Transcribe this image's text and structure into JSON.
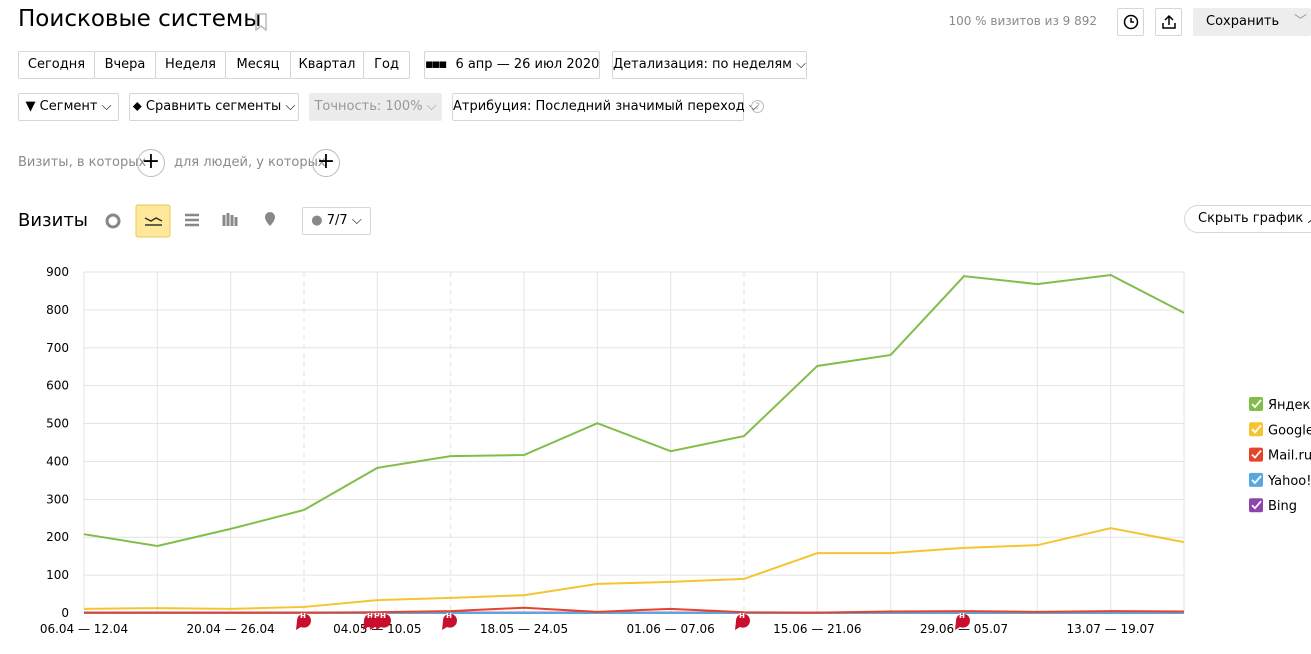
{
  "header": {
    "title": "Поисковые системы",
    "visits_share": "100 % визитов из 9 892",
    "save": "Сохранить"
  },
  "periods": [
    "Сегодня",
    "Вчера",
    "Неделя",
    "Месяц",
    "Квартал",
    "Год"
  ],
  "date_range": "6 апр — 26 июл 2020",
  "detail": "Детализация: по неделям",
  "filters": {
    "segment": "Сегмент",
    "compare": "Сравнить сегменты",
    "accuracy": "Точность: 100%",
    "attribution": "Атрибуция: Последний значимый переход"
  },
  "conditions": [
    "Визиты, в которых",
    "для людей, у которых"
  ],
  "section": {
    "title": "Визиты",
    "counter": "7/7",
    "hide": "Скрыть график"
  },
  "chart_data": {
    "type": "line",
    "categories": [
      "06.04 — 12.04",
      null,
      "20.04 — 26.04",
      null,
      "04.05 — 10.05",
      null,
      "18.05 — 24.05",
      null,
      "01.06 — 07.06",
      null,
      "15.06 — 21.06",
      null,
      "29.06 — 05.07",
      null,
      "13.07 — 19.07",
      null
    ],
    "series": [
      {
        "name": "Яндекс",
        "color": "#82bd4b",
        "values": [
          208,
          177,
          222,
          272,
          383,
          414,
          417,
          501,
          427,
          467,
          652,
          681,
          889,
          868,
          892,
          792
        ]
      },
      {
        "name": "Google",
        "color": "#f5c531",
        "values": [
          11,
          13,
          11,
          16,
          34,
          40,
          47,
          77,
          82,
          90,
          158,
          158,
          172,
          179,
          224,
          187
        ]
      },
      {
        "name": "Mail.ru",
        "color": "#e5432c",
        "values": [
          1,
          1,
          1,
          1,
          2,
          5,
          14,
          3,
          11,
          2,
          1,
          4,
          5,
          3,
          5,
          4
        ]
      },
      {
        "name": "Yahoo!",
        "color": "#5aa7e0",
        "values": [
          0,
          0,
          0,
          0,
          0,
          0,
          0,
          0,
          0,
          0,
          0,
          0,
          0,
          0,
          0,
          0
        ]
      },
      {
        "name": "Bing",
        "color": "#8e44ad",
        "values": [
          1,
          1,
          1,
          1,
          1,
          1,
          1,
          1,
          1,
          1,
          1,
          1,
          2,
          2,
          3,
          4
        ]
      }
    ],
    "ylim": [
      0,
      900
    ],
    "yticks": [
      0,
      100,
      200,
      300,
      400,
      500,
      600,
      700,
      800,
      900
    ],
    "grid": true,
    "legend": "right",
    "annotations": [
      "н",
      "н",
      "н",
      "н",
      "н",
      "н",
      "н"
    ]
  }
}
